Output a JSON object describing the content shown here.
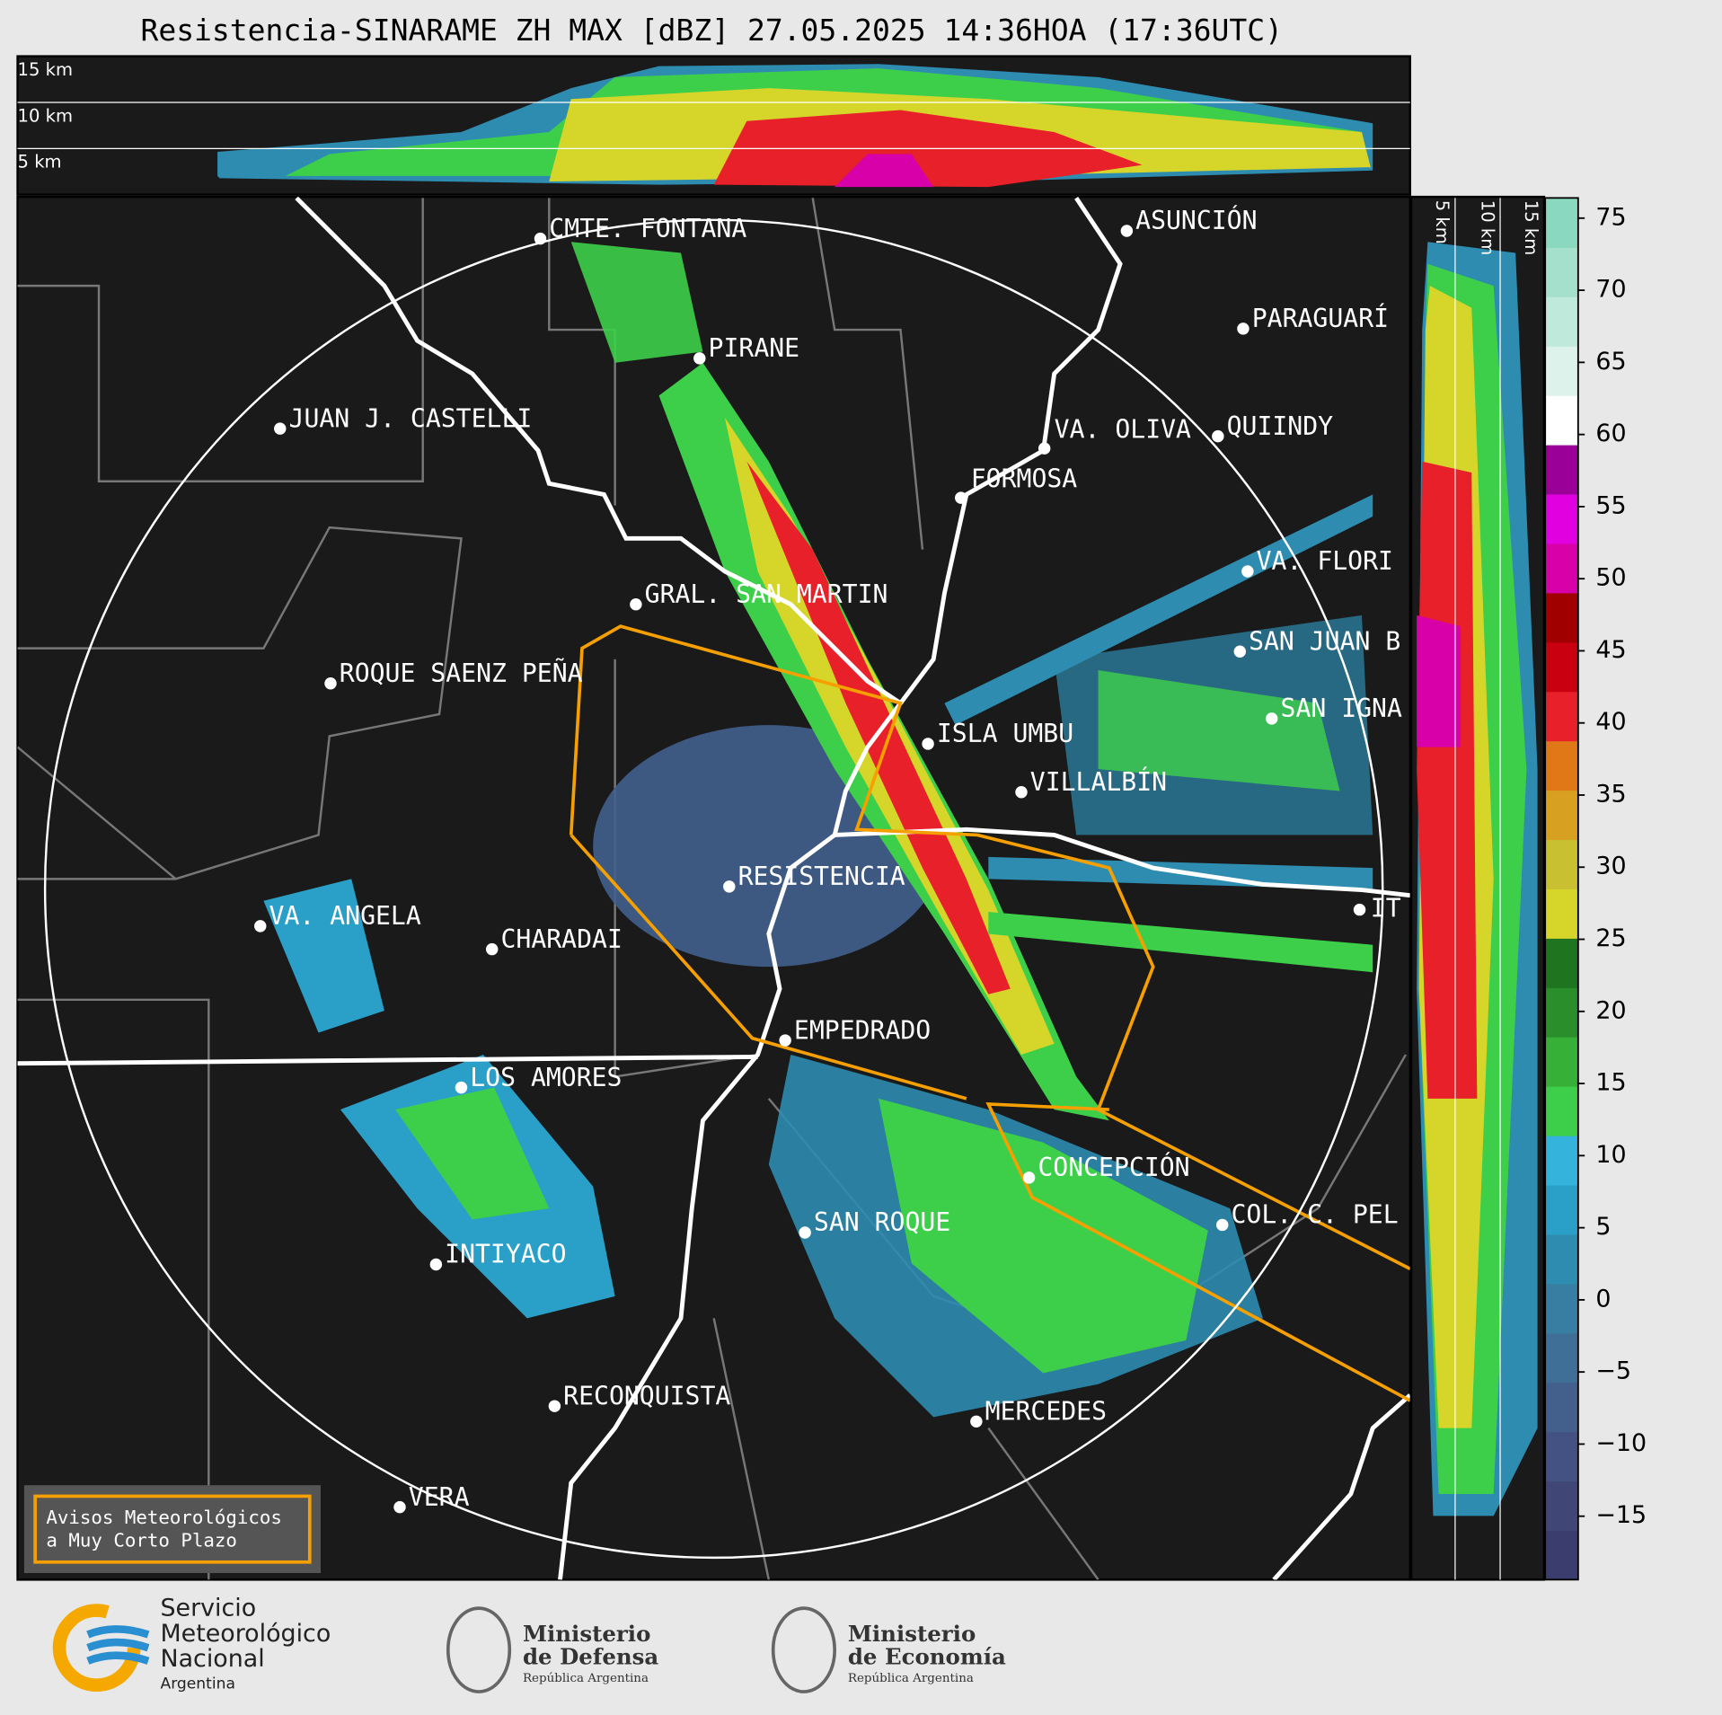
{
  "title": "Resistencia-SINARAME ZH MAX [dBZ] 27.05.2025 14:36HOA (17:36UTC)",
  "top_height_labels": [
    "15 km",
    "10 km",
    "5 km"
  ],
  "side_height_labels": [
    "5 km",
    "10 km",
    "15 km"
  ],
  "cities": [
    "CMTE. FONTANA",
    "ASUNCIÓN",
    "PARAGUARÍ",
    "PIRANE",
    "JUAN J. CASTELLI",
    "VA. OLIVA",
    "QUIINDY",
    "FORMOSA",
    "VA. FLORI",
    "GRAL. SAN MARTIN",
    "SAN JUAN B",
    "ROQUE SAENZ PEÑA",
    "SAN IGNA",
    "ISLA UMBU",
    "VILLALBÍN",
    "RESISTENCIA",
    "VA. ANGELA",
    "CHARADAI",
    "IT",
    "EMPEDRADO",
    "LOS AMORES",
    "CONCEPCIÓN",
    "SAN ROQUE",
    "COL. C. PEL",
    "INTIYACO",
    "RECONQUISTA",
    "MERCEDES",
    "VERA"
  ],
  "colorbar": {
    "lim": [
      -19.4,
      76.4
    ],
    "ticks": [
      {
        "value": -15,
        "label": "−15"
      },
      {
        "value": -10,
        "label": "−10"
      },
      {
        "value": -5,
        "label": "−5"
      },
      0,
      5,
      10,
      15,
      20,
      25,
      30,
      35,
      40,
      45,
      50,
      55,
      60,
      65,
      70,
      75
    ],
    "colors": [
      "#3a3d6e",
      "#404777",
      "#435282",
      "#43608d",
      "#3f6f97",
      "#377ea2",
      "#2e8cb0",
      "#2aa0c8",
      "#34b4dc",
      "#3ecf4a",
      "#36b036",
      "#2a8f2a",
      "#1f741f",
      "#d6d62a",
      "#c8c030",
      "#d8a020",
      "#e07818",
      "#e8202a",
      "#c80010",
      "#a00000",
      "#d800a8",
      "#e000e0",
      "#9a0098",
      "#ffffff",
      "#dcf2ea",
      "#bfe9da",
      "#a4e0cc",
      "#8ad8bf"
    ]
  },
  "warning": [
    "Avisos Meteorológicos",
    "a Muy Corto Plazo"
  ],
  "logos": {
    "smn": [
      "Servicio",
      "Meteorológico",
      "Nacional",
      "Argentina"
    ],
    "defensa": [
      "Ministerio",
      "de Defensa",
      "República Argentina"
    ],
    "economia": [
      "Ministerio",
      "de Economía",
      "República Argentina"
    ]
  }
}
